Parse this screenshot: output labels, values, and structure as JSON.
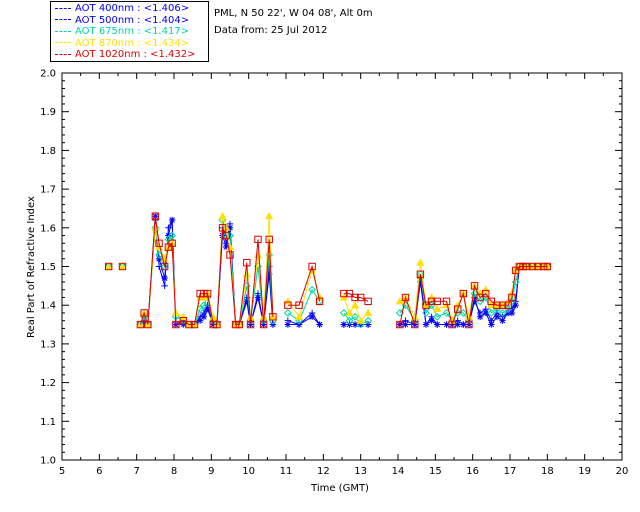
{
  "header": {
    "site_line": "PML, N 50 22', W 04 08', Alt 0m",
    "date_line": "Data from: 25 Jul 2012"
  },
  "legend": [
    {
      "label": "AOT  400nm : <1.406>",
      "color": "#0000ff"
    },
    {
      "label": "AOT  500nm : <1.404>",
      "color": "#0000ff"
    },
    {
      "label": "AOT  675nm : <1.417>",
      "color": "#00d8a0"
    },
    {
      "label": "AOT  870nm : <1.434>",
      "color": "#ffe000"
    },
    {
      "label": "AOT 1020nm : <1.432>",
      "color": "#dd0000"
    }
  ],
  "chart_data": {
    "type": "scatter",
    "xlabel": "Time (GMT)",
    "ylabel": "Real Part of Refractive Index",
    "xlim": [
      5,
      20
    ],
    "ylim": [
      1.0,
      2.0
    ],
    "xticks": [
      "5",
      "6",
      "7",
      "8",
      "9",
      "10",
      "11",
      "12",
      "13",
      "14",
      "15",
      "16",
      "17",
      "18",
      "19",
      "20"
    ],
    "yticks": [
      "1.0",
      "1.1",
      "1.2",
      "1.3",
      "1.4",
      "1.5",
      "1.6",
      "1.7",
      "1.8",
      "1.9",
      "2.0"
    ],
    "grid": false,
    "series": [
      {
        "name": "AOT  400nm : <1.406>",
        "color": "#0000ff",
        "marker": "plus",
        "x": [
          6.25,
          6.62,
          7.1,
          7.2,
          7.3,
          7.5,
          7.6,
          7.75,
          7.85,
          7.95,
          8.05,
          8.25,
          8.4,
          8.55,
          8.7,
          8.8,
          8.9,
          9.05,
          9.15,
          9.3,
          9.4,
          9.5,
          9.65,
          9.75,
          9.95,
          10.05,
          10.25,
          10.4,
          10.55,
          10.65,
          11.05,
          11.35,
          11.7,
          11.9,
          12.55,
          12.7,
          12.85,
          13.0,
          13.2,
          14.05,
          14.2,
          14.45,
          14.6,
          14.75,
          14.9,
          15.05,
          15.3,
          15.45,
          15.6,
          15.75,
          15.9,
          16.05,
          16.2,
          16.35,
          16.5,
          16.65,
          16.8,
          16.95,
          17.05,
          17.15,
          17.25,
          17.35,
          17.45,
          17.6,
          17.75,
          17.9,
          18.0
        ],
        "y": [
          1.5,
          1.5,
          1.35,
          1.36,
          1.35,
          1.62,
          1.5,
          1.45,
          1.6,
          1.62,
          1.35,
          1.36,
          1.35,
          1.35,
          1.37,
          1.38,
          1.4,
          1.35,
          1.35,
          1.6,
          1.56,
          1.61,
          1.35,
          1.35,
          1.42,
          1.35,
          1.43,
          1.35,
          1.5,
          1.35,
          1.36,
          1.35,
          1.38,
          1.35,
          1.35,
          1.35,
          1.35,
          1.35,
          1.35,
          1.35,
          1.36,
          1.35,
          1.46,
          1.35,
          1.37,
          1.35,
          1.35,
          1.35,
          1.36,
          1.35,
          1.35,
          1.41,
          1.38,
          1.39,
          1.36,
          1.38,
          1.37,
          1.38,
          1.39,
          1.41,
          1.5,
          1.5,
          1.5,
          1.5,
          1.5,
          1.5,
          1.5
        ]
      },
      {
        "name": "AOT  500nm : <1.404>",
        "color": "#0000ff",
        "marker": "asterisk",
        "x": [
          6.25,
          6.62,
          7.1,
          7.2,
          7.3,
          7.5,
          7.6,
          7.75,
          7.85,
          7.95,
          8.05,
          8.25,
          8.4,
          8.55,
          8.7,
          8.8,
          8.9,
          9.05,
          9.15,
          9.3,
          9.4,
          9.5,
          9.65,
          9.75,
          9.95,
          10.05,
          10.25,
          10.4,
          10.55,
          10.65,
          11.05,
          11.35,
          11.7,
          11.9,
          12.55,
          12.7,
          12.85,
          13.0,
          13.2,
          14.05,
          14.2,
          14.45,
          14.6,
          14.75,
          14.9,
          15.05,
          15.3,
          15.45,
          15.6,
          15.75,
          15.9,
          16.05,
          16.2,
          16.35,
          16.5,
          16.65,
          16.8,
          16.95,
          17.05,
          17.15,
          17.25,
          17.35,
          17.45,
          17.6,
          17.75,
          17.9,
          18.0
        ],
        "y": [
          1.5,
          1.5,
          1.35,
          1.35,
          1.35,
          1.63,
          1.52,
          1.47,
          1.58,
          1.62,
          1.35,
          1.35,
          1.35,
          1.35,
          1.36,
          1.37,
          1.39,
          1.35,
          1.35,
          1.58,
          1.55,
          1.6,
          1.35,
          1.35,
          1.41,
          1.35,
          1.42,
          1.35,
          1.48,
          1.35,
          1.35,
          1.35,
          1.37,
          1.35,
          1.35,
          1.35,
          1.35,
          1.35,
          1.35,
          1.35,
          1.35,
          1.35,
          1.47,
          1.35,
          1.36,
          1.35,
          1.35,
          1.35,
          1.35,
          1.35,
          1.35,
          1.42,
          1.37,
          1.38,
          1.35,
          1.37,
          1.36,
          1.38,
          1.38,
          1.4,
          1.5,
          1.5,
          1.5,
          1.5,
          1.5,
          1.5,
          1.5
        ]
      },
      {
        "name": "AOT  675nm : <1.417>",
        "color": "#00d8a0",
        "marker": "diamond",
        "x": [
          6.25,
          6.62,
          7.1,
          7.2,
          7.3,
          7.5,
          7.6,
          7.75,
          7.85,
          7.95,
          8.05,
          8.25,
          8.4,
          8.55,
          8.7,
          8.8,
          8.9,
          9.05,
          9.15,
          9.3,
          9.4,
          9.5,
          9.65,
          9.75,
          9.95,
          10.05,
          10.25,
          10.4,
          10.55,
          10.65,
          11.05,
          11.35,
          11.7,
          11.9,
          12.55,
          12.7,
          12.85,
          13.0,
          13.2,
          14.05,
          14.2,
          14.45,
          14.6,
          14.75,
          14.9,
          15.05,
          15.3,
          15.45,
          15.6,
          15.75,
          15.9,
          16.05,
          16.2,
          16.35,
          16.5,
          16.65,
          16.8,
          16.95,
          17.05,
          17.15,
          17.25,
          17.35,
          17.45,
          17.6,
          17.75,
          17.9,
          18.0
        ],
        "y": [
          1.5,
          1.5,
          1.35,
          1.37,
          1.35,
          1.6,
          1.53,
          1.5,
          1.57,
          1.58,
          1.37,
          1.36,
          1.35,
          1.35,
          1.39,
          1.4,
          1.42,
          1.36,
          1.35,
          1.62,
          1.58,
          1.58,
          1.35,
          1.35,
          1.45,
          1.36,
          1.5,
          1.36,
          1.53,
          1.36,
          1.38,
          1.36,
          1.44,
          1.41,
          1.38,
          1.36,
          1.37,
          1.35,
          1.36,
          1.38,
          1.4,
          1.36,
          1.48,
          1.38,
          1.4,
          1.37,
          1.38,
          1.36,
          1.38,
          1.38,
          1.36,
          1.43,
          1.41,
          1.42,
          1.38,
          1.39,
          1.38,
          1.39,
          1.41,
          1.46,
          1.5,
          1.5,
          1.5,
          1.5,
          1.5,
          1.5,
          1.5
        ]
      },
      {
        "name": "AOT  870nm : <1.434>",
        "color": "#ffe000",
        "marker": "triangle",
        "x": [
          6.25,
          6.62,
          7.1,
          7.2,
          7.3,
          7.5,
          7.6,
          7.75,
          7.85,
          7.95,
          8.05,
          8.25,
          8.4,
          8.55,
          8.7,
          8.8,
          8.9,
          9.05,
          9.15,
          9.3,
          9.4,
          9.5,
          9.65,
          9.75,
          9.95,
          10.05,
          10.25,
          10.4,
          10.55,
          10.65,
          11.05,
          11.35,
          11.7,
          11.9,
          12.55,
          12.7,
          12.85,
          13.0,
          13.2,
          14.05,
          14.2,
          14.45,
          14.6,
          14.75,
          14.9,
          15.05,
          15.3,
          15.45,
          15.6,
          15.75,
          15.9,
          16.05,
          16.2,
          16.35,
          16.5,
          16.65,
          16.8,
          16.95,
          17.05,
          17.15,
          17.25,
          17.35,
          17.45,
          17.6,
          17.75,
          17.9,
          18.0
        ],
        "y": [
          1.5,
          1.5,
          1.35,
          1.38,
          1.35,
          1.6,
          1.55,
          1.52,
          1.55,
          1.56,
          1.38,
          1.37,
          1.35,
          1.35,
          1.42,
          1.42,
          1.43,
          1.37,
          1.35,
          1.63,
          1.6,
          1.55,
          1.35,
          1.35,
          1.48,
          1.37,
          1.53,
          1.37,
          1.63,
          1.37,
          1.41,
          1.37,
          1.49,
          1.42,
          1.42,
          1.38,
          1.4,
          1.36,
          1.38,
          1.41,
          1.42,
          1.37,
          1.51,
          1.4,
          1.42,
          1.39,
          1.4,
          1.36,
          1.4,
          1.43,
          1.37,
          1.45,
          1.43,
          1.44,
          1.4,
          1.4,
          1.4,
          1.41,
          1.43,
          1.49,
          1.5,
          1.5,
          1.5,
          1.5,
          1.5,
          1.5,
          1.5
        ]
      },
      {
        "name": "AOT 1020nm : <1.432>",
        "color": "#dd0000",
        "marker": "square",
        "x": [
          6.25,
          6.62,
          7.1,
          7.2,
          7.3,
          7.5,
          7.6,
          7.75,
          7.85,
          7.95,
          8.05,
          8.25,
          8.4,
          8.55,
          8.7,
          8.8,
          8.9,
          9.05,
          9.15,
          9.3,
          9.4,
          9.5,
          9.65,
          9.75,
          9.95,
          10.05,
          10.25,
          10.4,
          10.55,
          10.65,
          11.05,
          11.35,
          11.7,
          11.9,
          12.55,
          12.7,
          12.85,
          13.0,
          13.2,
          14.05,
          14.2,
          14.45,
          14.6,
          14.75,
          14.9,
          15.05,
          15.3,
          15.45,
          15.6,
          15.75,
          15.9,
          16.05,
          16.2,
          16.35,
          16.5,
          16.65,
          16.8,
          16.95,
          17.05,
          17.15,
          17.25,
          17.35,
          17.45,
          17.6,
          17.75,
          17.9,
          18.0
        ],
        "y": [
          1.5,
          1.5,
          1.35,
          1.38,
          1.35,
          1.63,
          1.56,
          1.5,
          1.55,
          1.56,
          1.35,
          1.36,
          1.35,
          1.35,
          1.43,
          1.43,
          1.43,
          1.35,
          1.35,
          1.6,
          1.58,
          1.53,
          1.35,
          1.35,
          1.51,
          1.35,
          1.57,
          1.35,
          1.57,
          1.37,
          1.4,
          1.4,
          1.5,
          1.41,
          1.43,
          1.43,
          1.42,
          1.42,
          1.41,
          1.35,
          1.42,
          1.35,
          1.48,
          1.4,
          1.41,
          1.41,
          1.41,
          1.35,
          1.39,
          1.43,
          1.35,
          1.45,
          1.42,
          1.43,
          1.41,
          1.4,
          1.4,
          1.4,
          1.42,
          1.49,
          1.5,
          1.5,
          1.5,
          1.5,
          1.5,
          1.5,
          1.5
        ]
      }
    ]
  }
}
